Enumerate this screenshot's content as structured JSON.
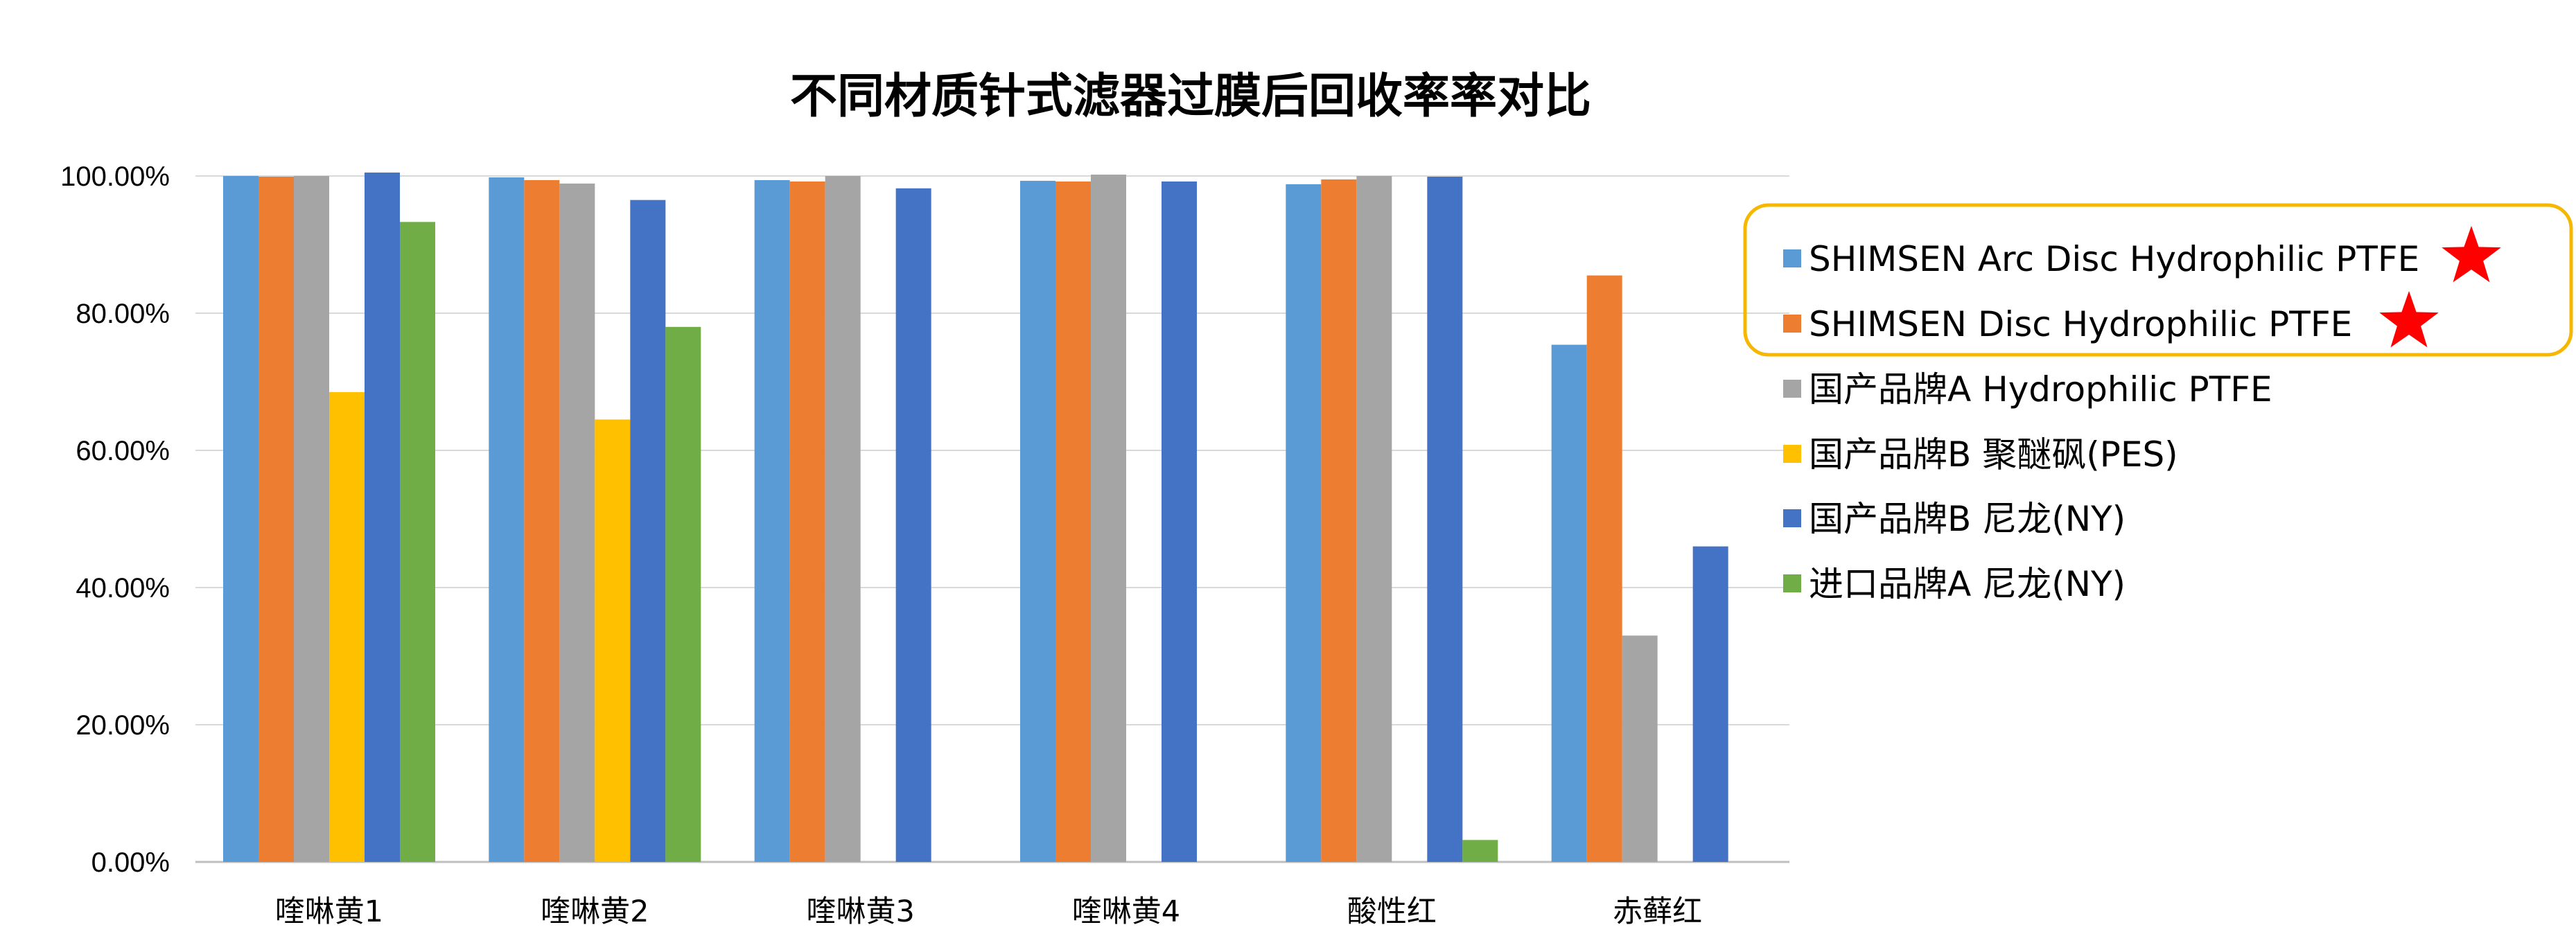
{
  "chart_data": {
    "type": "bar",
    "title": "不同材质针式滤器过膜后回收率率对比",
    "xlabel": "",
    "ylabel": "",
    "ylim": [
      0,
      100
    ],
    "yticks": [
      "0.00%",
      "20.00%",
      "40.00%",
      "60.00%",
      "80.00%",
      "100.00%"
    ],
    "grid": true,
    "legend_position": "right",
    "categories": [
      "喹啉黄1",
      "喹啉黄2",
      "喹啉黄3",
      "喹啉黄4",
      "酸性红",
      "赤藓红"
    ],
    "series": [
      {
        "name": "SHIMSEN Arc Disc Hydrophilic PTFE",
        "color": "#5b9bd5",
        "highlighted": true,
        "values": [
          100.0,
          99.8,
          99.4,
          99.3,
          98.8,
          75.4
        ]
      },
      {
        "name": "SHIMSEN Disc Hydrophilic PTFE",
        "color": "#ed7d31",
        "highlighted": true,
        "values": [
          99.9,
          99.4,
          99.2,
          99.2,
          99.5,
          85.5
        ]
      },
      {
        "name": "国产品牌A Hydrophilic PTFE",
        "color": "#a5a5a5",
        "highlighted": false,
        "values": [
          100.0,
          98.9,
          100.0,
          100.2,
          100.0,
          33.0
        ]
      },
      {
        "name": "国产品牌B 聚醚砜(PES)",
        "color": "#ffc000",
        "highlighted": false,
        "values": [
          68.5,
          64.5,
          null,
          null,
          null,
          null
        ]
      },
      {
        "name": "国产品牌B 尼龙(NY)",
        "color": "#4472c4",
        "highlighted": false,
        "values": [
          100.5,
          96.5,
          98.2,
          99.2,
          99.9,
          46.0
        ]
      },
      {
        "name": "进口品牌A 尼龙(NY)",
        "color": "#70ad47",
        "highlighted": false,
        "values": [
          93.3,
          78.0,
          null,
          null,
          3.2,
          null
        ]
      }
    ]
  },
  "legend": {
    "highlight_box_color": "#f5b700",
    "star_icon_color": "#ff0000"
  },
  "colors": {
    "gridline": "#d9d9d9",
    "axis": "#bfbfbf"
  }
}
